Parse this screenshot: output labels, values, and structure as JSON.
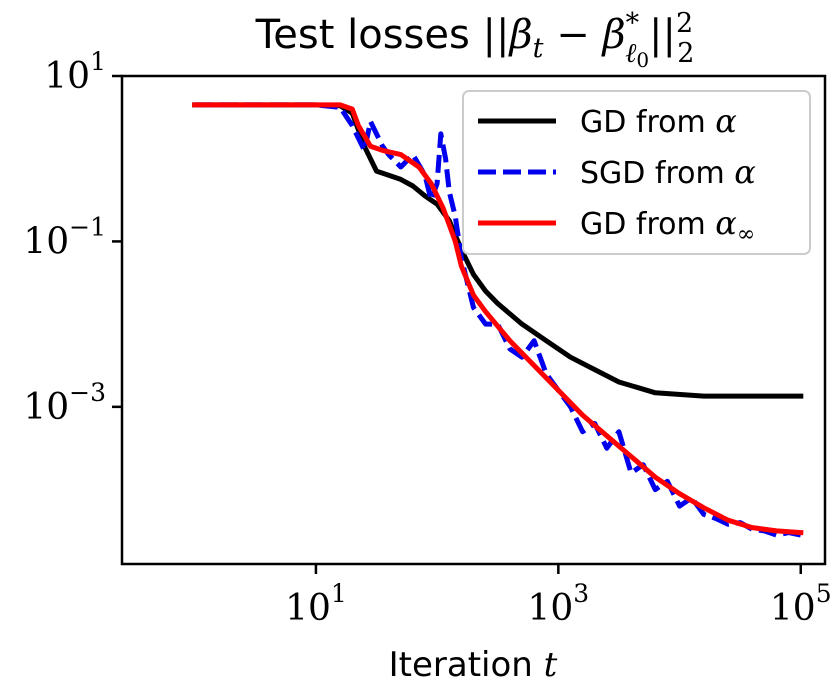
{
  "chart_data": {
    "type": "line",
    "title": "Test losses ||βt − β*ℓ0||²₂",
    "title_parts": {
      "prefix": "Test losses ",
      "bars_open": "||",
      "beta": "β",
      "sub_t": "t",
      "minus": " − ",
      "beta2": "β",
      "sup_star": "*",
      "sub_l": "ℓ",
      "sub_0": "0",
      "bars_close": "||",
      "sup_2": "2",
      "sub_2": "2"
    },
    "xlabel": "Iteration t",
    "xlabel_parts": {
      "text": "Iteration ",
      "var": "t"
    },
    "ylabel": "",
    "xscale": "log",
    "yscale": "log",
    "xlim_log10": [
      -0.6,
      5.2
    ],
    "ylim_log10": [
      -4.9,
      1.0
    ],
    "x_ticks": [
      {
        "log10": 1,
        "base": "10",
        "exp": "1"
      },
      {
        "log10": 3,
        "base": "10",
        "exp": "3"
      },
      {
        "log10": 5,
        "base": "10",
        "exp": "5"
      }
    ],
    "y_ticks": [
      {
        "log10": 1,
        "base": "10",
        "exp": "1"
      },
      {
        "log10": -1,
        "base": "10",
        "exp": "−1"
      },
      {
        "log10": -3,
        "base": "10",
        "exp": "−3"
      }
    ],
    "legend_position": "upper right",
    "series": [
      {
        "name": "GD from α",
        "label_text": "GD from ",
        "label_sym": "α",
        "label_sub": "",
        "color": "#000000",
        "style": "solid",
        "points_log10": [
          [
            0,
            0.65
          ],
          [
            0.5,
            0.65
          ],
          [
            1,
            0.65
          ],
          [
            1.2,
            0.64
          ],
          [
            1.3,
            0.55
          ],
          [
            1.4,
            0.15
          ],
          [
            1.5,
            -0.15
          ],
          [
            1.6,
            -0.2
          ],
          [
            1.7,
            -0.25
          ],
          [
            1.8,
            -0.33
          ],
          [
            1.9,
            -0.45
          ],
          [
            2.0,
            -0.55
          ],
          [
            2.1,
            -0.75
          ],
          [
            2.2,
            -1.1
          ],
          [
            2.3,
            -1.4
          ],
          [
            2.4,
            -1.6
          ],
          [
            2.5,
            -1.75
          ],
          [
            2.7,
            -2.0
          ],
          [
            2.9,
            -2.2
          ],
          [
            3.1,
            -2.4
          ],
          [
            3.3,
            -2.55
          ],
          [
            3.5,
            -2.7
          ],
          [
            3.8,
            -2.83
          ],
          [
            4.2,
            -2.87
          ],
          [
            4.6,
            -2.87
          ],
          [
            5,
            -2.87
          ]
        ]
      },
      {
        "name": "SGD from α",
        "label_text": "SGD from ",
        "label_sym": "α",
        "label_sub": "",
        "color": "#0000ee",
        "style": "dashed",
        "points_log10": [
          [
            0,
            0.65
          ],
          [
            0.5,
            0.65
          ],
          [
            1,
            0.65
          ],
          [
            1.2,
            0.62
          ],
          [
            1.3,
            0.4
          ],
          [
            1.4,
            0.1
          ],
          [
            1.45,
            0.45
          ],
          [
            1.5,
            0.3
          ],
          [
            1.55,
            0.15
          ],
          [
            1.6,
            0.05
          ],
          [
            1.7,
            -0.1
          ],
          [
            1.8,
            0.05
          ],
          [
            1.9,
            -0.2
          ],
          [
            1.95,
            -0.5
          ],
          [
            2.0,
            -0.3
          ],
          [
            2.03,
            0.3
          ],
          [
            2.07,
            0.0
          ],
          [
            2.1,
            -0.4
          ],
          [
            2.15,
            -0.7
          ],
          [
            2.2,
            -1.2
          ],
          [
            2.25,
            -1.5
          ],
          [
            2.3,
            -1.8
          ],
          [
            2.4,
            -2.0
          ],
          [
            2.5,
            -2.0
          ],
          [
            2.6,
            -2.3
          ],
          [
            2.7,
            -2.4
          ],
          [
            2.8,
            -2.2
          ],
          [
            2.9,
            -2.6
          ],
          [
            3.0,
            -2.8
          ],
          [
            3.1,
            -3.0
          ],
          [
            3.2,
            -3.3
          ],
          [
            3.3,
            -3.2
          ],
          [
            3.4,
            -3.5
          ],
          [
            3.5,
            -3.3
          ],
          [
            3.6,
            -3.8
          ],
          [
            3.7,
            -3.7
          ],
          [
            3.8,
            -4.0
          ],
          [
            3.9,
            -3.9
          ],
          [
            4.0,
            -4.2
          ],
          [
            4.1,
            -4.1
          ],
          [
            4.2,
            -4.3
          ],
          [
            4.3,
            -4.35
          ],
          [
            4.4,
            -4.42
          ],
          [
            4.5,
            -4.4
          ],
          [
            4.6,
            -4.48
          ],
          [
            4.7,
            -4.5
          ],
          [
            4.8,
            -4.55
          ],
          [
            4.9,
            -4.52
          ],
          [
            5,
            -4.55
          ]
        ]
      },
      {
        "name": "GD from α∞",
        "label_text": "GD from ",
        "label_sym": "α",
        "label_sub": "∞",
        "color": "#ff0000",
        "style": "solid",
        "points_log10": [
          [
            0,
            0.65
          ],
          [
            0.5,
            0.65
          ],
          [
            1,
            0.65
          ],
          [
            1.2,
            0.65
          ],
          [
            1.3,
            0.6
          ],
          [
            1.35,
            0.4
          ],
          [
            1.45,
            0.15
          ],
          [
            1.55,
            0.1
          ],
          [
            1.7,
            0.05
          ],
          [
            1.85,
            -0.1
          ],
          [
            1.95,
            -0.3
          ],
          [
            2.05,
            -0.6
          ],
          [
            2.15,
            -1.0
          ],
          [
            2.2,
            -1.3
          ],
          [
            2.3,
            -1.65
          ],
          [
            2.4,
            -1.85
          ],
          [
            2.6,
            -2.2
          ],
          [
            2.8,
            -2.5
          ],
          [
            3.0,
            -2.8
          ],
          [
            3.2,
            -3.1
          ],
          [
            3.4,
            -3.35
          ],
          [
            3.6,
            -3.6
          ],
          [
            3.8,
            -3.85
          ],
          [
            4.0,
            -4.05
          ],
          [
            4.2,
            -4.22
          ],
          [
            4.4,
            -4.37
          ],
          [
            4.6,
            -4.46
          ],
          [
            4.8,
            -4.5
          ],
          [
            5,
            -4.52
          ]
        ]
      }
    ]
  }
}
